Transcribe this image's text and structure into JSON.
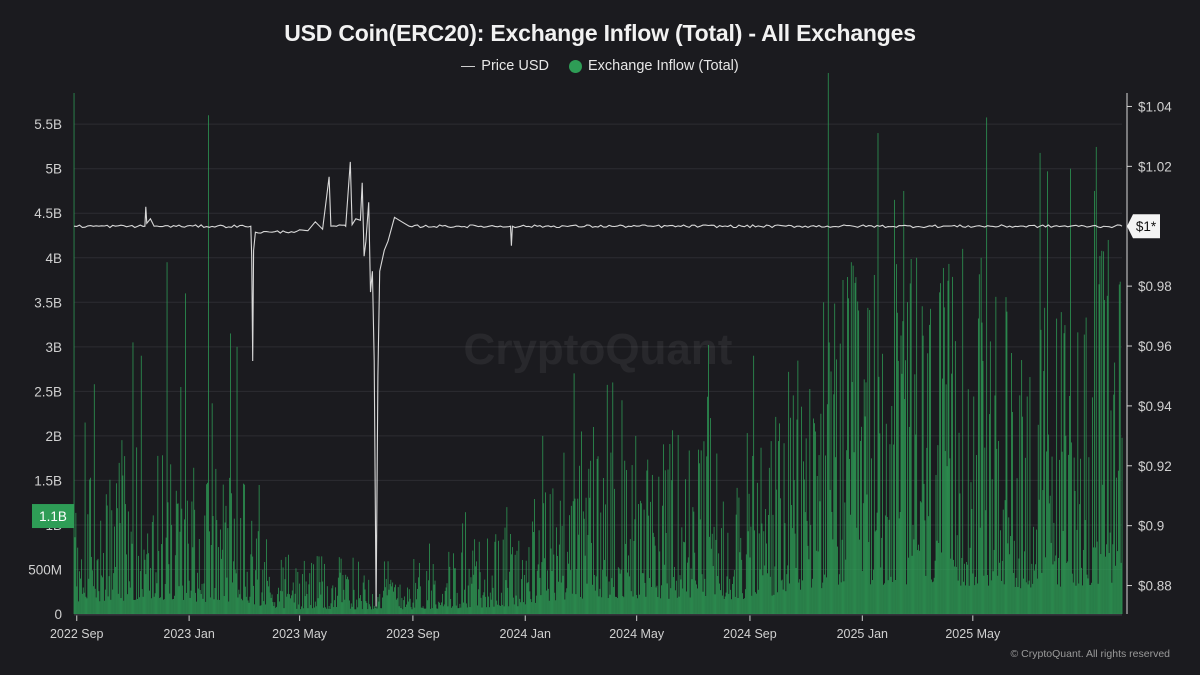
{
  "chart_data": {
    "type": "bar",
    "title": "USD Coin(ERC20): Exchange Inflow (Total) - All Exchanges",
    "legend": [
      {
        "name": "Price USD",
        "kind": "line",
        "color": "#cfcfcf"
      },
      {
        "name": "Exchange Inflow (Total)",
        "kind": "dot",
        "color": "#2e9d56"
      }
    ],
    "legend_position": "top-center",
    "grid": "horizontal",
    "watermark": "CryptoQuant",
    "x_axis": {
      "ticks": [
        "2022 Sep",
        "2023 Jan",
        "2023 May",
        "2023 Sep",
        "2024 Jan",
        "2024 May",
        "2024 Sep",
        "2025 Jan",
        "2025 May"
      ],
      "range": [
        "2022-08-29",
        "2025-10-10"
      ]
    },
    "y_left": {
      "ticks": [
        "0",
        "500M",
        "1B",
        "1.5B",
        "2B",
        "2.5B",
        "3B",
        "3.5B",
        "4B",
        "4.5B",
        "5B",
        "5.5B"
      ],
      "range": [
        0,
        5850000000
      ],
      "current_label": "1.1B",
      "current_value": 1100000000
    },
    "y_right": {
      "ticks": [
        "$0.88",
        "$0.9",
        "$0.92",
        "$0.94",
        "$0.96",
        "$0.98",
        "$1.02",
        "$1.04"
      ],
      "range": [
        0.8705,
        1.0445
      ],
      "current_label": "$1*",
      "current_value": 1.0
    },
    "series": [
      {
        "name": "Exchange Inflow (Total)",
        "type": "bar",
        "color": "#2e9d56",
        "profile": [
          [
            "2022-08-29",
            800000000
          ],
          [
            "2022-10-01",
            900000000
          ],
          [
            "2022-11-15",
            1100000000
          ],
          [
            "2022-12-15",
            1000000000
          ],
          [
            "2023-01-15",
            900000000
          ],
          [
            "2023-03-01",
            950000000
          ],
          [
            "2023-03-25",
            500000000
          ],
          [
            "2023-05-01",
            350000000
          ],
          [
            "2023-07-01",
            350000000
          ],
          [
            "2023-09-01",
            350000000
          ],
          [
            "2023-11-01",
            450000000
          ],
          [
            "2024-01-01",
            600000000
          ],
          [
            "2024-02-15",
            1100000000
          ],
          [
            "2024-04-15",
            1200000000
          ],
          [
            "2024-07-01",
            1100000000
          ],
          [
            "2024-09-01",
            1100000000
          ],
          [
            "2024-10-15",
            1500000000
          ],
          [
            "2024-12-01",
            2100000000
          ],
          [
            "2025-02-01",
            2200000000
          ],
          [
            "2025-05-01",
            2100000000
          ],
          [
            "2025-07-01",
            1900000000
          ],
          [
            "2025-10-10",
            2300000000
          ]
        ],
        "spikes": [
          [
            "2022-08-29",
            5850000000
          ],
          [
            "2022-09-10",
            2150000000
          ],
          [
            "2022-11-01",
            3050000000
          ],
          [
            "2022-11-10",
            2900000000
          ],
          [
            "2022-12-08",
            3950000000
          ],
          [
            "2022-12-28",
            3600000000
          ],
          [
            "2023-01-22",
            5600000000
          ],
          [
            "2023-02-15",
            3150000000
          ],
          [
            "2023-02-22",
            3000000000
          ],
          [
            "2023-05-20",
            650000000
          ],
          [
            "2023-12-12",
            1200000000
          ],
          [
            "2024-01-20",
            2000000000
          ],
          [
            "2024-03-15",
            2100000000
          ],
          [
            "2024-04-15",
            2400000000
          ],
          [
            "2024-07-20",
            2200000000
          ],
          [
            "2024-09-05",
            2900000000
          ],
          [
            "2024-11-20",
            3500000000
          ],
          [
            "2024-12-20",
            3950000000
          ],
          [
            "2025-01-18",
            5400000000
          ],
          [
            "2025-02-05",
            4650000000
          ],
          [
            "2025-02-15",
            4750000000
          ],
          [
            "2025-03-01",
            4000000000
          ],
          [
            "2025-04-20",
            4100000000
          ],
          [
            "2025-05-10",
            4000000000
          ],
          [
            "2025-08-15",
            5000000000
          ],
          [
            "2025-09-10",
            4750000000
          ],
          [
            "2025-09-25",
            4200000000
          ],
          [
            "2025-10-07",
            3700000000
          ]
        ]
      },
      {
        "name": "Price USD",
        "type": "line",
        "color": "#d8d8d8",
        "points": [
          [
            "2022-08-29",
            1.0
          ],
          [
            "2022-11-14",
            1.0
          ],
          [
            "2022-11-15",
            1.0065
          ],
          [
            "2022-11-16",
            1.001
          ],
          [
            "2022-11-20",
            1.0025
          ],
          [
            "2022-11-24",
            1.0
          ],
          [
            "2023-03-09",
            1.0
          ],
          [
            "2023-03-10",
            0.99
          ],
          [
            "2023-03-11",
            0.955
          ],
          [
            "2023-03-12",
            0.992
          ],
          [
            "2023-03-14",
            0.998
          ],
          [
            "2023-04-01",
            0.998
          ],
          [
            "2023-05-10",
            0.9985
          ],
          [
            "2023-05-18",
            1.0015
          ],
          [
            "2023-05-26",
            0.999
          ],
          [
            "2023-06-02",
            1.0165
          ],
          [
            "2023-06-04",
            1.0
          ],
          [
            "2023-06-20",
            1.0
          ],
          [
            "2023-06-25",
            1.0215
          ],
          [
            "2023-06-27",
            1.0005
          ],
          [
            "2023-07-01",
            1.0025
          ],
          [
            "2023-07-06",
            1.002
          ],
          [
            "2023-07-08",
            1.0145
          ],
          [
            "2023-07-10",
            0.99
          ],
          [
            "2023-07-12",
            0.995
          ],
          [
            "2023-07-15",
            1.008
          ],
          [
            "2023-07-17",
            0.978
          ],
          [
            "2023-07-19",
            0.985
          ],
          [
            "2023-07-21",
            0.955
          ],
          [
            "2023-07-23",
            0.873
          ],
          [
            "2023-07-25",
            0.95
          ],
          [
            "2023-07-27",
            0.985
          ],
          [
            "2023-08-01",
            0.992
          ],
          [
            "2023-08-05",
            0.995
          ],
          [
            "2023-08-12",
            1.003
          ],
          [
            "2023-08-20",
            1.0015
          ],
          [
            "2023-08-28",
            1.0
          ],
          [
            "2023-12-16",
            1.0
          ],
          [
            "2023-12-17",
            0.9935
          ],
          [
            "2023-12-18",
            1.0
          ],
          [
            "2025-10-10",
            1.0
          ]
        ],
        "current_value": 1.0
      }
    ]
  },
  "copyright": "© CryptoQuant. All rights reserved"
}
